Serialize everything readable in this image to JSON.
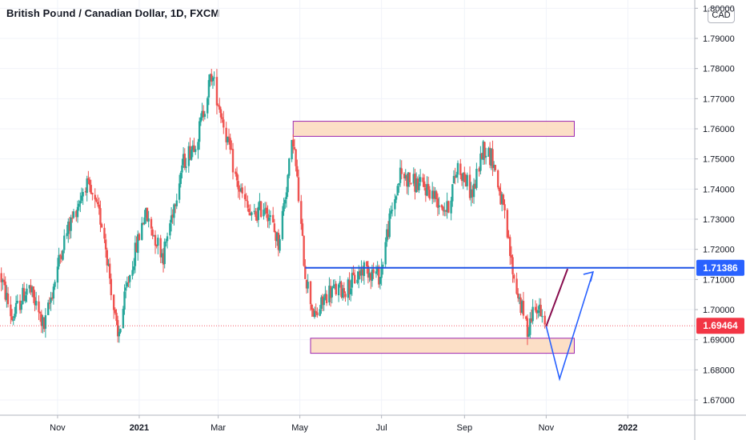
{
  "header": {
    "title": "British Pound / Canadian Dollar, 1D, FXCM"
  },
  "currency_badge": "CAD",
  "colors": {
    "up": "#26a69a",
    "down": "#ef5350",
    "zone_fill": "#fcd9bc",
    "zone_border": "#9c27b0",
    "horizontal_line": "#1e53e5",
    "price_tag_blue": "#2962ff",
    "price_tag_red": "#f23645",
    "projection_blue": "#2962ff",
    "projection_dark_red": "#880e4f"
  },
  "chart_data": {
    "type": "candlestick",
    "title": "British Pound / Canadian Dollar, 1D, FXCM",
    "ylim": [
      1.665,
      1.8
    ],
    "y_ticks": [
      "1.67000",
      "1.68000",
      "1.69000",
      "1.70000",
      "1.71000",
      "1.72000",
      "1.73000",
      "1.74000",
      "1.75000",
      "1.76000",
      "1.77000",
      "1.78000",
      "1.79000",
      "1.80000"
    ],
    "x_ticks": [
      "Nov",
      "2021",
      "Mar",
      "May",
      "Jul",
      "Sep",
      "Nov",
      "2022"
    ],
    "x_tick_dates": [
      "2020-11-01",
      "2021-01-01",
      "2021-03-01",
      "2021-05-01",
      "2021-07-01",
      "2021-09-01",
      "2021-11-01",
      "2022-01-01"
    ],
    "date_range": [
      "2020-09-19",
      "2022-02-20"
    ],
    "last_price": "1.69464",
    "line_price_label": "1.71386",
    "anchors": [
      {
        "date": "2020-09-19",
        "price": 1.712
      },
      {
        "date": "2020-09-28",
        "price": 1.697
      },
      {
        "date": "2020-10-10",
        "price": 1.708
      },
      {
        "date": "2020-10-22",
        "price": 1.694
      },
      {
        "date": "2020-11-05",
        "price": 1.722
      },
      {
        "date": "2020-11-22",
        "price": 1.742
      },
      {
        "date": "2020-12-05",
        "price": 1.728
      },
      {
        "date": "2020-12-16",
        "price": 1.69
      },
      {
        "date": "2020-12-23",
        "price": 1.708
      },
      {
        "date": "2021-01-05",
        "price": 1.732
      },
      {
        "date": "2021-01-19",
        "price": 1.718
      },
      {
        "date": "2021-02-02",
        "price": 1.748
      },
      {
        "date": "2021-02-14",
        "price": 1.758
      },
      {
        "date": "2021-02-24",
        "price": 1.778
      },
      {
        "date": "2021-03-05",
        "price": 1.762
      },
      {
        "date": "2021-03-15",
        "price": 1.742
      },
      {
        "date": "2021-03-26",
        "price": 1.73
      },
      {
        "date": "2021-04-05",
        "price": 1.735
      },
      {
        "date": "2021-04-15",
        "price": 1.722
      },
      {
        "date": "2021-04-26",
        "price": 1.757
      },
      {
        "date": "2021-05-05",
        "price": 1.712
      },
      {
        "date": "2021-05-12",
        "price": 1.697
      },
      {
        "date": "2021-05-22",
        "price": 1.706
      },
      {
        "date": "2021-06-05",
        "price": 1.707
      },
      {
        "date": "2021-06-18",
        "price": 1.714
      },
      {
        "date": "2021-06-30",
        "price": 1.711
      },
      {
        "date": "2021-07-05",
        "price": 1.725
      },
      {
        "date": "2021-07-15",
        "price": 1.745
      },
      {
        "date": "2021-07-25",
        "price": 1.742
      },
      {
        "date": "2021-08-05",
        "price": 1.74
      },
      {
        "date": "2021-08-19",
        "price": 1.733
      },
      {
        "date": "2021-08-27",
        "price": 1.748
      },
      {
        "date": "2021-09-07",
        "price": 1.738
      },
      {
        "date": "2021-09-15",
        "price": 1.754
      },
      {
        "date": "2021-09-22",
        "price": 1.75
      },
      {
        "date": "2021-09-30",
        "price": 1.733
      },
      {
        "date": "2021-10-08",
        "price": 1.71
      },
      {
        "date": "2021-10-18",
        "price": 1.693
      },
      {
        "date": "2021-10-24",
        "price": 1.703
      },
      {
        "date": "2021-10-31",
        "price": 1.694
      }
    ],
    "zones": [
      {
        "date_start": "2021-04-26",
        "date_end": "2021-11-22",
        "price_low": 1.7575,
        "price_high": 1.7625
      },
      {
        "date_start": "2021-05-09",
        "date_end": "2021-11-22",
        "price_low": 1.6855,
        "price_high": 1.6905
      }
    ],
    "horizontal_line": {
      "price": 1.71386,
      "date_start": "2021-05-05"
    },
    "projection_dark_red": [
      {
        "date": "2021-11-01",
        "price": 1.6945
      },
      {
        "date": "2021-11-17",
        "price": 1.7135
      }
    ],
    "projection_blue": [
      {
        "date": "2021-11-01",
        "price": 1.6945
      },
      {
        "date": "2021-11-11",
        "price": 1.677
      },
      {
        "date": "2021-12-06",
        "price": 1.7125
      }
    ]
  }
}
